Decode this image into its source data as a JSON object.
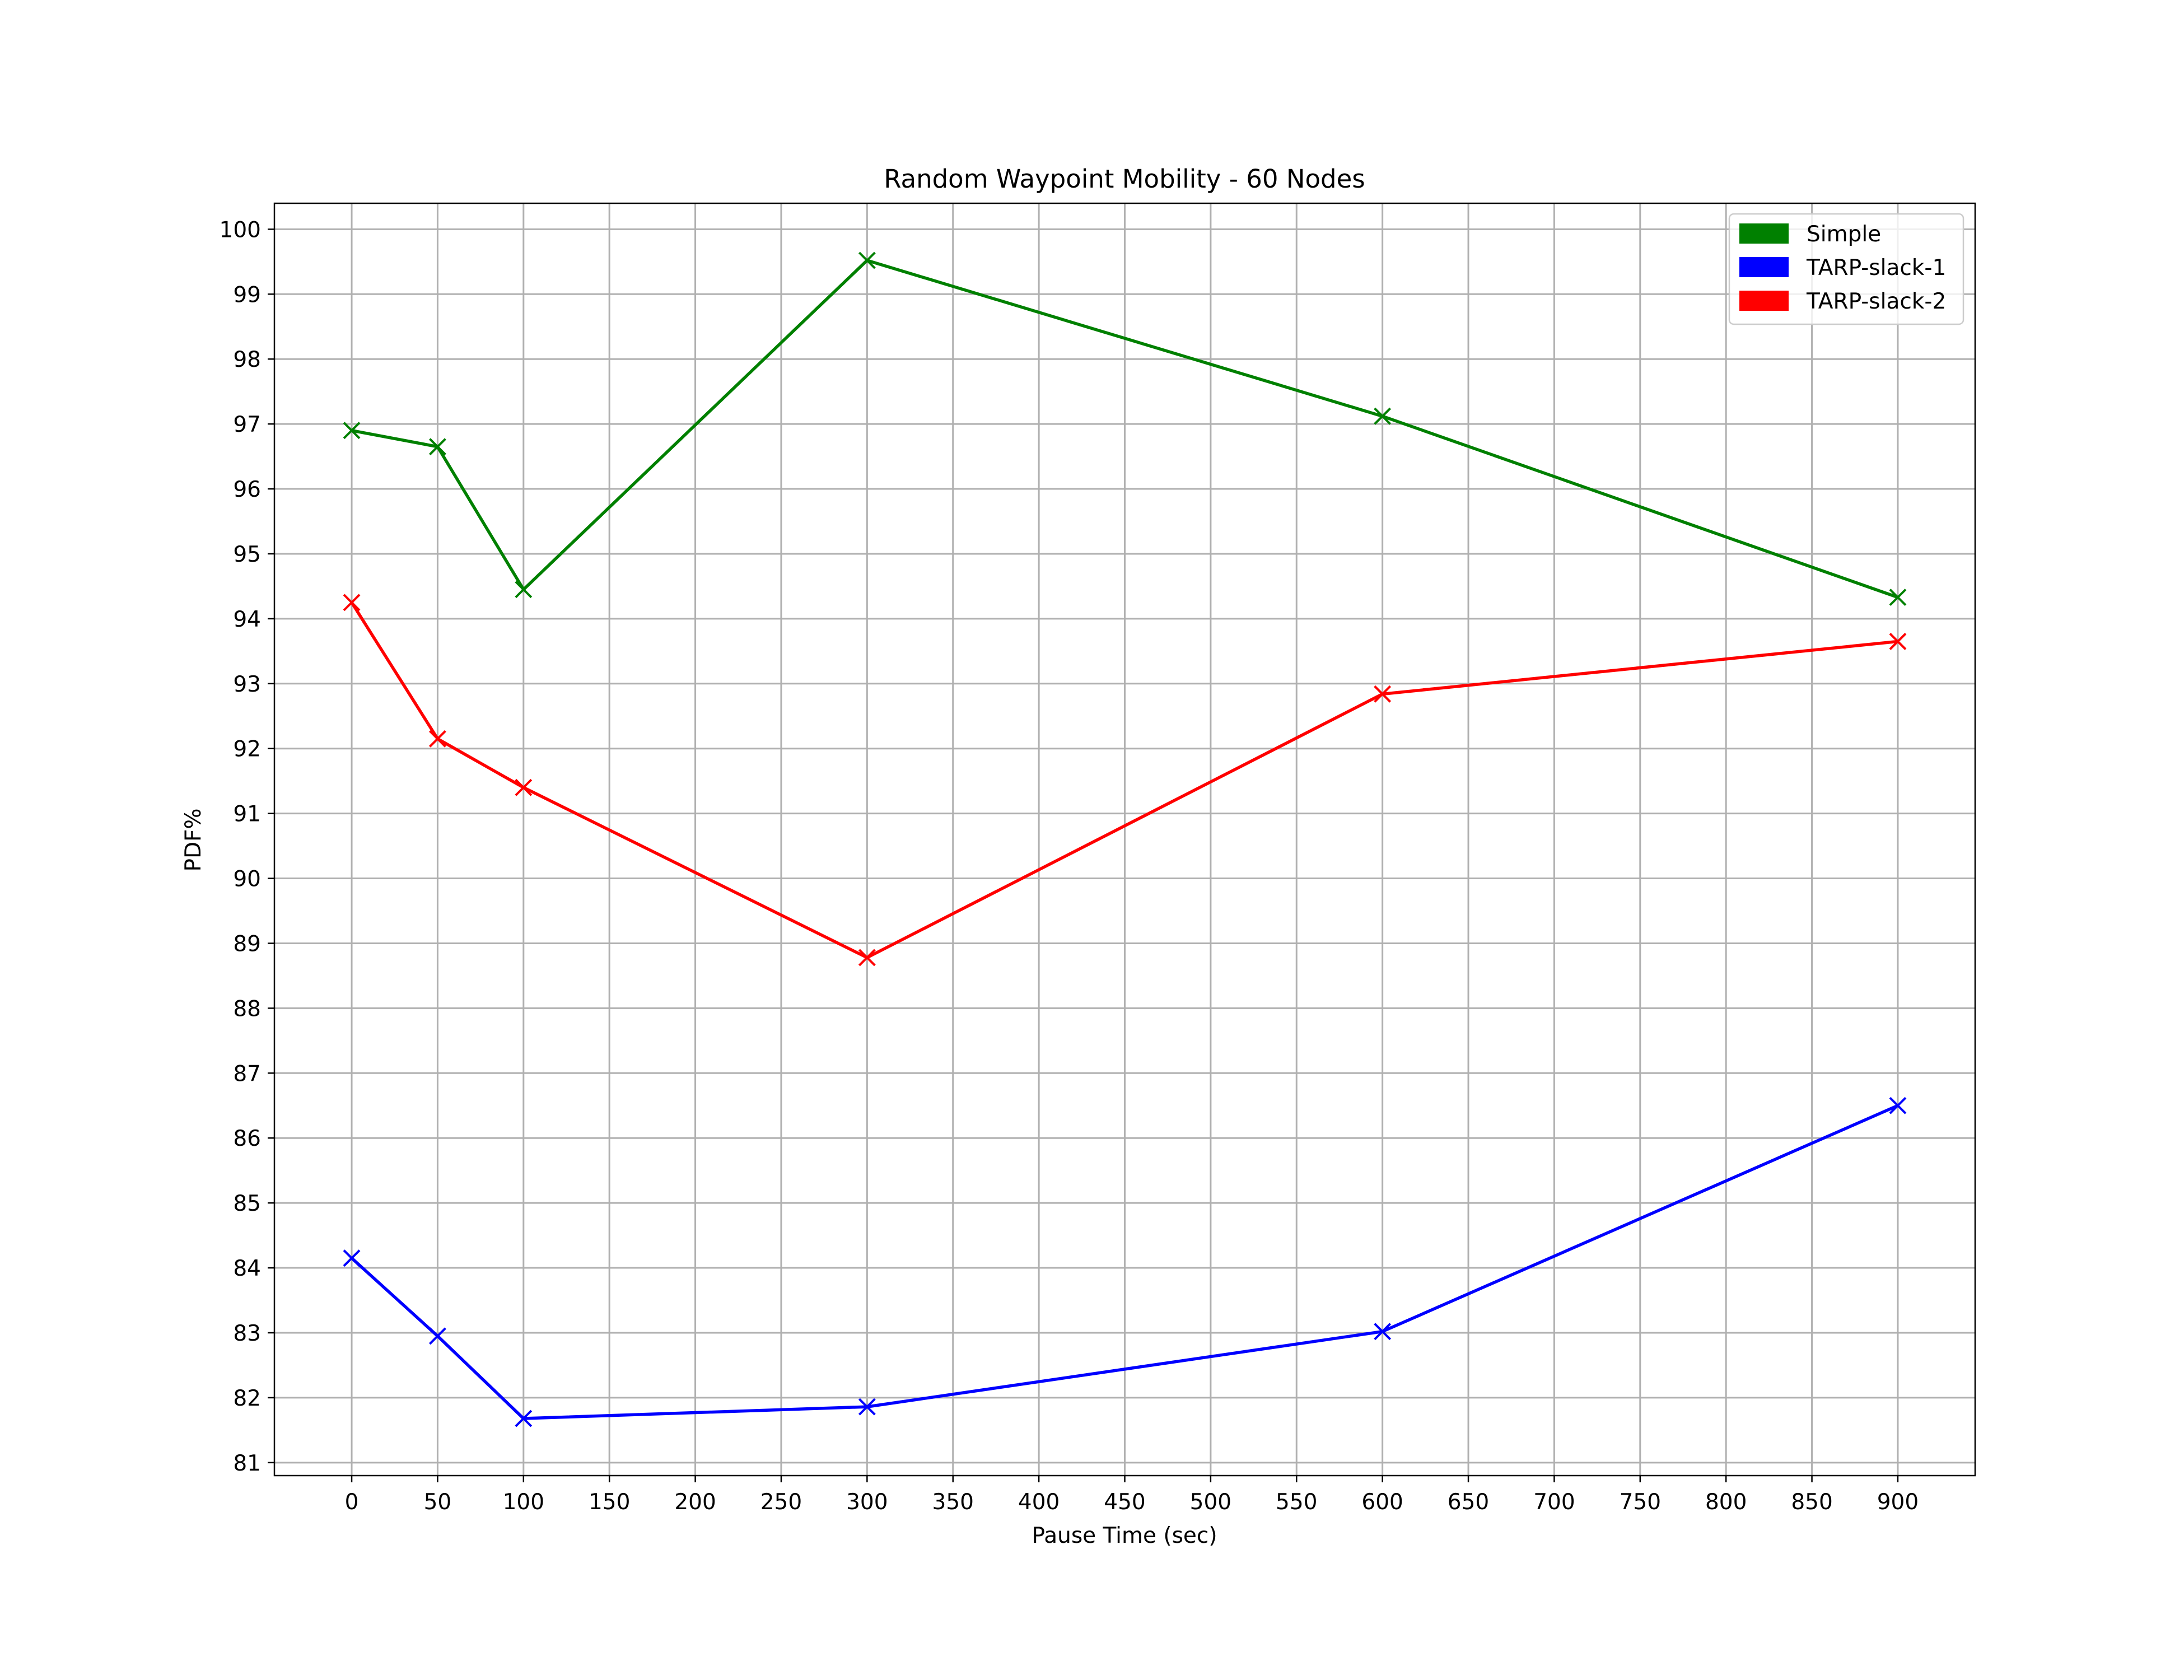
{
  "chart_data": {
    "type": "line",
    "title": "Random Waypoint Mobility - 60 Nodes",
    "xlabel": "Pause Time (sec)",
    "ylabel": "PDF%",
    "x": [
      0,
      50,
      100,
      300,
      600,
      900
    ],
    "xlim": [
      -45,
      945
    ],
    "ylim": [
      80.8,
      100.4
    ],
    "xticks": [
      0,
      50,
      100,
      150,
      200,
      250,
      300,
      350,
      400,
      450,
      500,
      550,
      600,
      650,
      700,
      750,
      800,
      850,
      900
    ],
    "yticks": [
      81,
      82,
      83,
      84,
      85,
      86,
      87,
      88,
      89,
      90,
      91,
      92,
      93,
      94,
      95,
      96,
      97,
      98,
      99,
      100
    ],
    "grid": true,
    "legend_position": "top-right",
    "marker": "x",
    "series": [
      {
        "name": "Simple",
        "color": "#008000",
        "values": [
          96.9,
          96.65,
          94.45,
          99.52,
          97.12,
          94.33
        ]
      },
      {
        "name": "TARP-slack-1",
        "color": "#0000ff",
        "values": [
          84.15,
          82.95,
          81.68,
          81.86,
          83.02,
          86.5
        ]
      },
      {
        "name": "TARP-slack-2",
        "color": "#ff0000",
        "values": [
          94.25,
          92.15,
          91.4,
          88.78,
          92.84,
          93.65
        ]
      }
    ]
  }
}
